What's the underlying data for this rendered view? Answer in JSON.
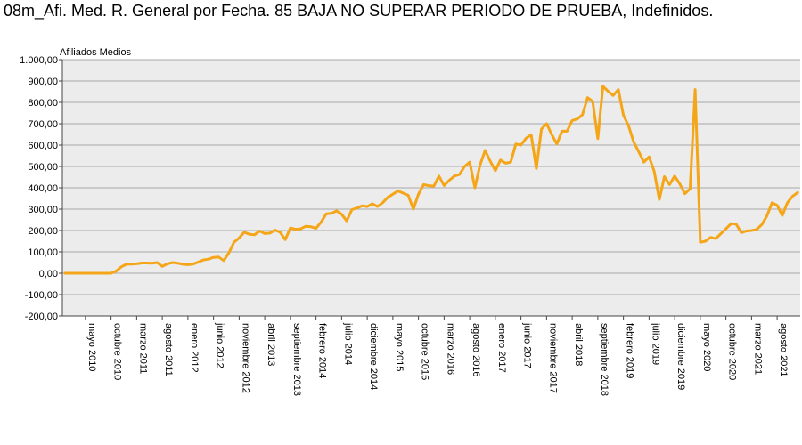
{
  "chart_data": {
    "type": "line",
    "title": "08m_Afi. Med. R. General por Fecha. 85 BAJA NO SUPERAR PERIODO DE PRUEBA, Indefinidos.",
    "ylabel": "Afiliados Medios",
    "ylim": [
      -200,
      1000
    ],
    "yticks": [
      "-200,00",
      "-100,00",
      "0,00",
      "100,00",
      "200,00",
      "300,00",
      "400,00",
      "500,00",
      "600,00",
      "700,00",
      "800,00",
      "900,00",
      "1.000,00"
    ],
    "ytick_values": [
      -200,
      -100,
      0,
      100,
      200,
      300,
      400,
      500,
      600,
      700,
      800,
      900,
      1000
    ],
    "xticks": [
      "mayo 2010",
      "octubre 2010",
      "marzo 2011",
      "agosto 2011",
      "enero 2012",
      "junio 2012",
      "noviembre 2012",
      "abril 2013",
      "septiembre 2013",
      "febrero 2014",
      "julio 2014",
      "diciembre 2014",
      "mayo 2015",
      "octubre 2015",
      "marzo 2016",
      "agosto 2016",
      "enero 2017",
      "junio 2017",
      "noviembre 2017",
      "abril 2018",
      "septiembre 2018",
      "febrero 2019",
      "julio 2019",
      "diciembre 2019",
      "mayo 2020",
      "octubre 2020",
      "marzo 2021",
      "agosto 2021"
    ],
    "xtick_index": [
      4,
      9,
      14,
      19,
      24,
      29,
      34,
      39,
      44,
      49,
      54,
      59,
      64,
      69,
      74,
      79,
      84,
      89,
      94,
      99,
      104,
      109,
      114,
      119,
      124,
      129,
      134,
      139
    ],
    "grid": true,
    "line_color": "#f5a618",
    "plot_bg": "#ececec",
    "series": [
      {
        "values": [
          0,
          0,
          0,
          0,
          0,
          0,
          0,
          0,
          0,
          0,
          10,
          30,
          42,
          43,
          44,
          48,
          48,
          47,
          50,
          32,
          44,
          50,
          47,
          42,
          40,
          43,
          52,
          62,
          66,
          74,
          76,
          59,
          96,
          145,
          165,
          192,
          182,
          180,
          198,
          186,
          188,
          202,
          192,
          157,
          212,
          206,
          208,
          220,
          218,
          210,
          240,
          278,
          280,
          292,
          276,
          245,
          298,
          305,
          316,
          312,
          325,
          312,
          330,
          355,
          370,
          385,
          375,
          365,
          300,
          370,
          415,
          410,
          408,
          455,
          410,
          435,
          455,
          462,
          500,
          520,
          400,
          505,
          575,
          525,
          480,
          530,
          515,
          520,
          605,
          600,
          632,
          648,
          490,
          675,
          700,
          650,
          605,
          665,
          665,
          715,
          722,
          742,
          822,
          805,
          630,
          875,
          852,
          832,
          860,
          740,
          690,
          615,
          568,
          520,
          545,
          478,
          345,
          452,
          415,
          455,
          418,
          372,
          395,
          860,
          145,
          150,
          168,
          162,
          185,
          208,
          232,
          230,
          190,
          198,
          200,
          205,
          228,
          268,
          330,
          318,
          270,
          330,
          360,
          378
        ]
      }
    ]
  }
}
